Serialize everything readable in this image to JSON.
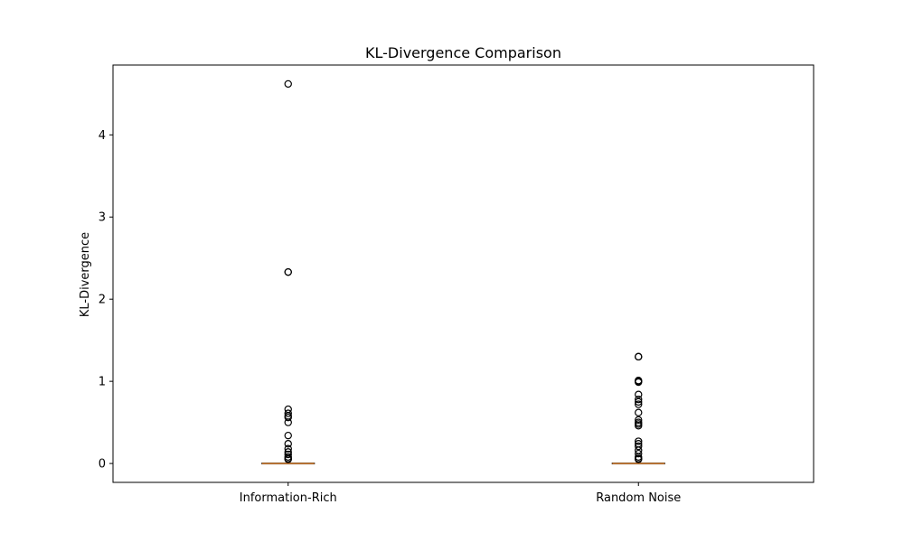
{
  "chart_data": {
    "type": "box",
    "title": "KL-Divergence Comparison",
    "xlabel": "",
    "ylabel": "KL-Divergence",
    "ylim": [
      -0.23,
      4.85
    ],
    "yticks": [
      0,
      1,
      2,
      3,
      4
    ],
    "grid": false,
    "categories": [
      "Information-Rich",
      "Random Noise"
    ],
    "boxes": [
      {
        "category": "Information-Rich",
        "whisker_low": 0.0,
        "q1": 0.0,
        "median": 0.0,
        "q3": 0.0,
        "whisker_high": 0.0,
        "outliers": [
          4.62,
          2.33,
          2.33,
          0.66,
          0.61,
          0.58,
          0.56,
          0.5,
          0.34,
          0.24,
          0.18,
          0.14,
          0.11,
          0.08,
          0.06,
          0.05
        ]
      },
      {
        "category": "Random Noise",
        "whisker_low": 0.0,
        "q1": 0.0,
        "median": 0.0,
        "q3": 0.0,
        "whisker_high": 0.0,
        "outliers": [
          1.3,
          1.3,
          1.01,
          1.0,
          0.99,
          0.84,
          0.78,
          0.75,
          0.72,
          0.62,
          0.53,
          0.5,
          0.48,
          0.46,
          0.27,
          0.24,
          0.21,
          0.16,
          0.12,
          0.08,
          0.06,
          0.05
        ]
      }
    ],
    "colors": {
      "median": "#e08a3c",
      "box": "#000000",
      "outlier": "#000000",
      "axis": "#000000"
    }
  }
}
